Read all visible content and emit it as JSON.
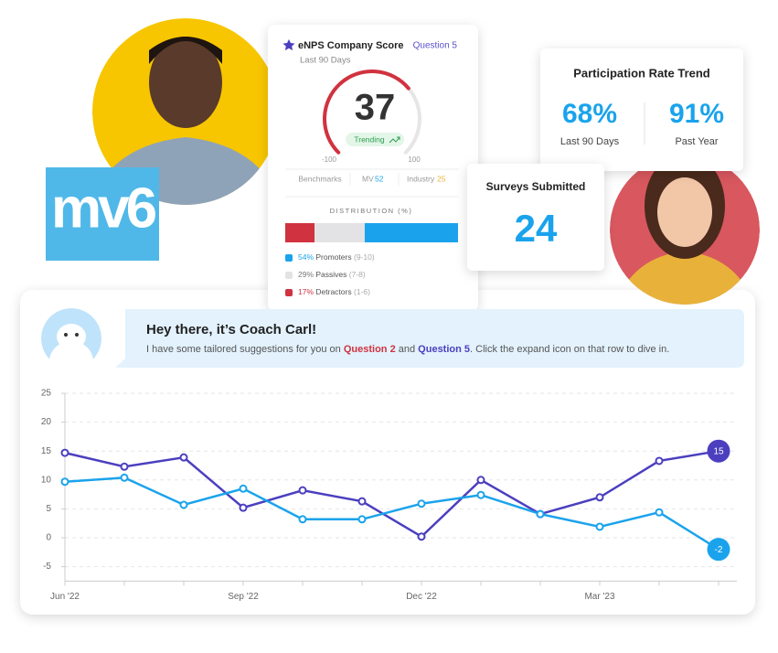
{
  "logo": "mv6",
  "enps": {
    "title": "eNPS Company Score",
    "question": "Question 5",
    "period": "Last 90 Days",
    "score": 37,
    "gauge_min": -100,
    "gauge_max": 100,
    "trend": "Trending",
    "benchmarks": "Benchmarks",
    "mv_label": "MV",
    "mv_value": 52,
    "industry_label": "Industry",
    "industry_value": 25,
    "distribution_title": "DISTRIBUTION (%)",
    "distribution": [
      {
        "value": 54,
        "value_label": "54%",
        "name": "Promoters",
        "range": "(9-10)",
        "color": "#1aa3ec"
      },
      {
        "value": 29,
        "value_label": "29%",
        "name": "Passives",
        "range": "(7-8)",
        "color": "#e3e3e6"
      },
      {
        "value": 17,
        "value_label": "17%",
        "name": "Detractors",
        "range": "(1-6)",
        "color": "#d1323f"
      }
    ]
  },
  "participation": {
    "title": "Participation Rate Trend",
    "stats": [
      {
        "value": "68%",
        "label": "Last 90 Days"
      },
      {
        "value": "91%",
        "label": "Past Year"
      }
    ]
  },
  "surveys": {
    "title": "Surveys Submitted",
    "value": "24"
  },
  "coach": {
    "title": "Hey there, it’s Coach Carl!",
    "message": [
      "I have some tailored suggestions for you on ",
      "Question 2",
      " and ",
      "Question 5",
      ". Click the expand icon on that row to dive in."
    ]
  },
  "chart_data": {
    "type": "line",
    "categories": [
      "Jun '22",
      null,
      null,
      "Sep '22",
      null,
      null,
      "Dec '22",
      null,
      null,
      "Mar '23",
      null,
      null
    ],
    "series": [
      {
        "color": "#4b3fbf",
        "values": [
          14.7,
          12.3,
          13.9,
          5.2,
          8.2,
          6.3,
          0.2,
          10,
          4.1,
          7,
          13.3,
          15
        ]
      },
      {
        "color": "#1aa3ec",
        "values": [
          9.7,
          10.4,
          5.7,
          8.5,
          3.2,
          3.2,
          5.9,
          7.4,
          4.1,
          1.9,
          4.4,
          -2
        ]
      }
    ],
    "ylim": [
      -7.5,
      25
    ],
    "yticks": [
      -5,
      0,
      5,
      10,
      15,
      20,
      25
    ],
    "grid": true
  }
}
